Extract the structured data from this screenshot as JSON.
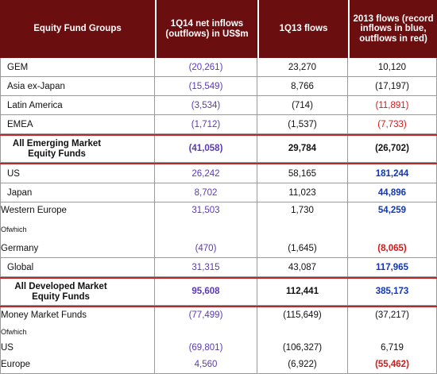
{
  "headers": {
    "group": "Equity Fund Groups",
    "col1": "1Q14 net inflows (outflows) in US$m",
    "col2": "1Q13 flows",
    "col3": "2013 flows (record inflows in blue, outflows in red)"
  },
  "rows": {
    "gem": {
      "label": "GEM",
      "v1": "(20,261)",
      "v2": "23,270",
      "v3": "10,120"
    },
    "asia": {
      "label": "Asia ex-Japan",
      "v1": "(15,549)",
      "v2": "8,766",
      "v3": "(17,197)"
    },
    "latam": {
      "label": "Latin America",
      "v1": "(3,534)",
      "v2": "(714)",
      "v3": "(11,891)"
    },
    "emea": {
      "label": "EMEA",
      "v1": "(1,712)",
      "v2": "(1,537)",
      "v3": "(7,733)"
    },
    "all_em": {
      "label": "All Emerging Market Equity Funds",
      "v1": "(41,058)",
      "v2": "29,784",
      "v3": "(26,702)"
    },
    "us": {
      "label": "US",
      "v1": "26,242",
      "v2": "58,165",
      "v3": "181,244"
    },
    "japan": {
      "label": "Japan",
      "v1": "8,702",
      "v2": "11,023",
      "v3": "44,896"
    },
    "weu": {
      "label": "Western Europe",
      "v1": "31,503",
      "v2": "1,730",
      "v3": "54,259"
    },
    "ofwhich1": {
      "label": "Ofwhich"
    },
    "germany": {
      "label": "Germany",
      "v1": "(470)",
      "v2": "(1,645)",
      "v3": "(8,065)"
    },
    "global": {
      "label": "Global",
      "v1": "31,315",
      "v2": "43,087",
      "v3": "117,965"
    },
    "all_dev": {
      "label": "All Developed Market Equity Funds",
      "v1": "95,608",
      "v2": "112,441",
      "v3": "385,173"
    },
    "mmf": {
      "label": "Money Market Funds",
      "v1": "(77,499)",
      "v2": "(115,649)",
      "v3": "(37,217)"
    },
    "ofwhich2": {
      "label": "Ofwhich"
    },
    "us2": {
      "label": "US",
      "v1": "(69,801)",
      "v2": "(106,327)",
      "v3": "6,719"
    },
    "europe": {
      "label": "Europe",
      "v1": "4,560",
      "v2": "(6,922)",
      "v3": "(55,462)"
    }
  },
  "colors": {
    "header_bg": "#6b0e10",
    "inflow_purple": "#5a39b5",
    "record_inflow_blue": "#1236b8",
    "record_outflow_red": "#d51818",
    "separator_red": "#c42424"
  }
}
